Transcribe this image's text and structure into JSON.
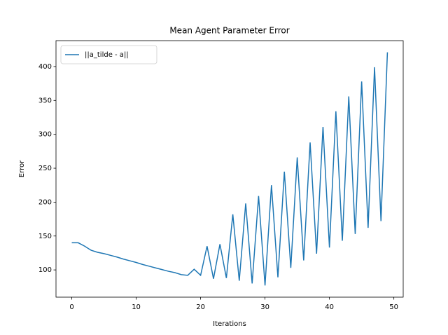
{
  "chart_data": {
    "type": "line",
    "title": "Mean Agent Parameter Error",
    "xlabel": "Iterations",
    "ylabel": "Error",
    "x": [
      0,
      1,
      2,
      3,
      4,
      5,
      6,
      7,
      8,
      9,
      10,
      11,
      12,
      13,
      14,
      15,
      16,
      17,
      18,
      19,
      20,
      21,
      22,
      23,
      24,
      25,
      26,
      27,
      28,
      29,
      30,
      31,
      32,
      33,
      34,
      35,
      36,
      37,
      38,
      39,
      40,
      41,
      42,
      43,
      44,
      45,
      46,
      47,
      48,
      49
    ],
    "series": [
      {
        "name": "||a_tilde - a||",
        "color": "#1f77b4",
        "values": [
          140,
          140,
          135,
          129,
          126,
          124,
          121.5,
          119,
          116,
          113.5,
          111,
          108,
          105.5,
          103,
          100.5,
          98,
          96,
          93,
          92,
          101,
          92,
          135,
          87,
          138,
          88,
          182,
          84,
          198,
          80,
          209,
          77,
          225,
          89,
          245,
          103,
          266,
          114,
          288,
          124,
          311,
          133,
          334,
          143,
          356,
          153,
          378,
          162,
          399,
          172,
          421
        ]
      }
    ],
    "xlim": [
      -2.45,
      51.45
    ],
    "xticks": [
      0,
      10,
      20,
      30,
      40,
      50
    ],
    "ylim": [
      59.8,
      438.2
    ],
    "yticks": [
      100,
      150,
      200,
      250,
      300,
      350,
      400
    ],
    "legend": "upper left"
  }
}
